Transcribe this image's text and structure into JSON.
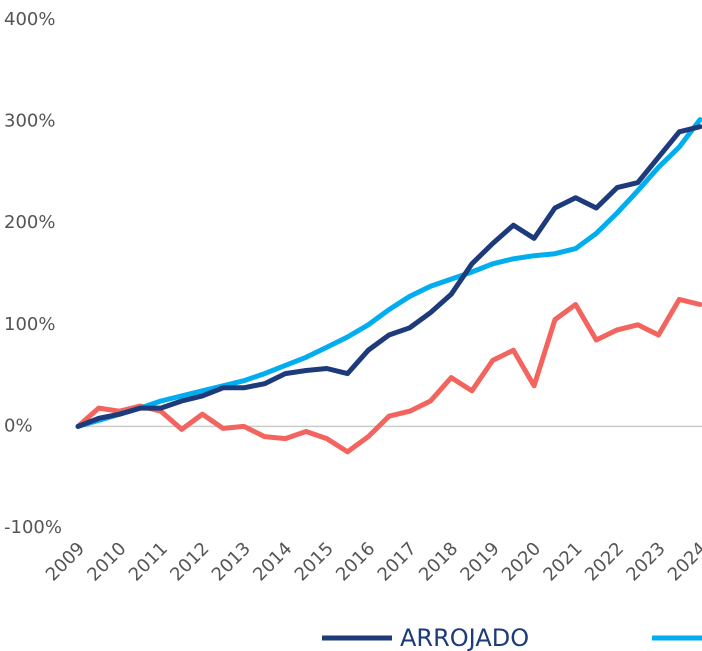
{
  "chart_data": {
    "type": "line",
    "x": [
      2009,
      2009.5,
      2010,
      2010.5,
      2011,
      2011.5,
      2012,
      2012.5,
      2013,
      2013.5,
      2014,
      2014.5,
      2015,
      2015.5,
      2016,
      2016.5,
      2017,
      2017.5,
      2018,
      2018.5,
      2019,
      2019.5,
      2020,
      2020.5,
      2021,
      2021.5,
      2022,
      2022.5,
      2023,
      2023.5,
      2024
    ],
    "series": [
      {
        "name": "ARROJADO",
        "color": "#1d3a7a",
        "values": [
          0,
          8,
          12,
          18,
          18,
          25,
          30,
          38,
          38,
          42,
          52,
          55,
          57,
          52,
          75,
          90,
          97,
          112,
          130,
          160,
          180,
          198,
          185,
          215,
          225,
          215,
          235,
          240,
          265,
          290,
          295
        ]
      },
      {
        "color": "#00aeef",
        "values": [
          0,
          6,
          12,
          18,
          25,
          30,
          35,
          40,
          45,
          52,
          60,
          68,
          78,
          88,
          100,
          115,
          128,
          138,
          145,
          152,
          160,
          165,
          168,
          170,
          175,
          190,
          210,
          232,
          255,
          275,
          302
        ]
      },
      {
        "color": "#f4645f",
        "values": [
          0,
          18,
          15,
          20,
          15,
          -3,
          12,
          -2,
          0,
          -10,
          -12,
          -5,
          -12,
          -25,
          -10,
          10,
          15,
          25,
          48,
          35,
          65,
          75,
          40,
          105,
          120,
          85,
          95,
          100,
          90,
          125,
          120
        ]
      }
    ],
    "xlim": [
      2009,
      2024
    ],
    "xticks": [
      2009,
      2010,
      2011,
      2012,
      2013,
      2014,
      2015,
      2016,
      2017,
      2018,
      2019,
      2020,
      2021,
      2022,
      2023,
      2024
    ],
    "ylim": [
      -100,
      400
    ],
    "yticks": [
      {
        "value": -100,
        "label": "-100%"
      },
      {
        "value": 0,
        "label": "0%"
      },
      {
        "value": 100,
        "label": "100%"
      },
      {
        "value": 200,
        "label": "200%"
      },
      {
        "value": 300,
        "label": "300%"
      },
      {
        "value": 400,
        "label": "400%"
      }
    ],
    "grid": false
  }
}
